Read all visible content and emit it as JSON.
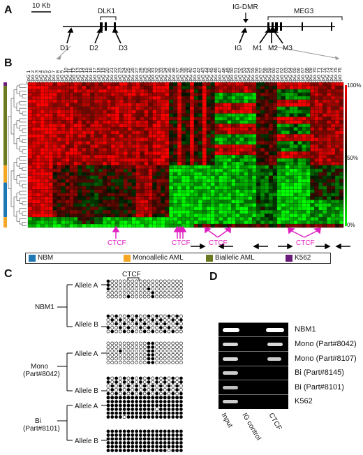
{
  "panels": {
    "a": "A",
    "b": "B",
    "c": "C",
    "d": "D"
  },
  "panel_a": {
    "scale_bar": "10 Kb",
    "genes": {
      "dlk1": "DLK1",
      "ig_dmr": "IG-DMR",
      "meg3": "MEG3"
    },
    "probes": [
      "D1",
      "D2",
      "D3",
      "IG",
      "M1",
      "M2",
      "M3"
    ]
  },
  "panel_b": {
    "cpg_labels": [
      "CpG 1",
      "CpG 2",
      "CpG 3",
      "CpG 4",
      "CpG 5",
      "CpG 6",
      "CpG 7",
      "CpG 8",
      "CpG 9",
      "CpG 10",
      "CpG 11",
      "CpG 12",
      "CpG 13",
      "CpG 14",
      "CpG 15",
      "CpG 16",
      "CpG 17",
      "CpG 18",
      "CpG 19",
      "CpG 20",
      "CpG 21",
      "CpG 22",
      "CpG 23",
      "CpG 24",
      "CpG 25",
      "CpG 26",
      "CpG 27",
      "CpG 28",
      "CpG 29",
      "CpG 30",
      "CpG 31",
      "CpG 32",
      "CpG 33",
      "CpG 34",
      "CpG 35",
      "CpG 36",
      "CpG 37",
      "CpG 38",
      "CpG 39",
      "CpG 40",
      "CpG 41",
      "CpG 42",
      "CpG 43",
      "CpG 44",
      "CpG 45",
      "CpG 46",
      "CpG 47",
      "CpG 48",
      "CpG 49",
      "CpG 50",
      "CpG 51",
      "CpG 52",
      "CpG 53",
      "CpG 54",
      "CpG 55",
      "CpG 56",
      "CpG 57",
      "CpG 58",
      "CpG 59",
      "CpG 60",
      "CpG 61",
      "CpG 62",
      "CpG 63",
      "CpG 64",
      "CpG 65",
      "CpG 66",
      "CpG 67",
      "CpG 68",
      "CpG 69",
      "CpG 70",
      "CpG 71",
      "CpG 72",
      "CpG 73",
      "CpG 74",
      "CpG 75",
      "CpG 76"
    ],
    "scale": {
      "top": "100%",
      "mid": "50%",
      "bottom": "0%"
    },
    "ctcf": "CTCF",
    "legend": [
      {
        "label": "NBM",
        "color": "#1f77b4"
      },
      {
        "label": "Monoallelic AML",
        "color": "#f5a623"
      },
      {
        "label": "Biallelic AML",
        "color": "#6b7a1f"
      },
      {
        "label": "K562",
        "color": "#6a1b7a"
      }
    ]
  },
  "panel_c": {
    "ctcf": "CTCF",
    "groups": [
      {
        "name": "NBM1",
        "sub": "",
        "alleles": [
          "Allele A",
          "Allele B"
        ]
      },
      {
        "name": "Mono",
        "sub": "(Part#8042)",
        "alleles": [
          "Allele A",
          "Allele B"
        ]
      },
      {
        "name": "Bi",
        "sub": "(Part#8101)",
        "alleles": [
          "Allele A",
          "Allele B"
        ]
      }
    ]
  },
  "panel_d": {
    "rows": [
      "NBM1",
      "Mono (Part#8042)",
      "Mono (Part#8107)",
      "Bi (Part#8145)",
      "Bi (Part#8101)",
      "K562"
    ],
    "lanes": [
      "Input",
      "IG control",
      "CTCF"
    ]
  }
}
